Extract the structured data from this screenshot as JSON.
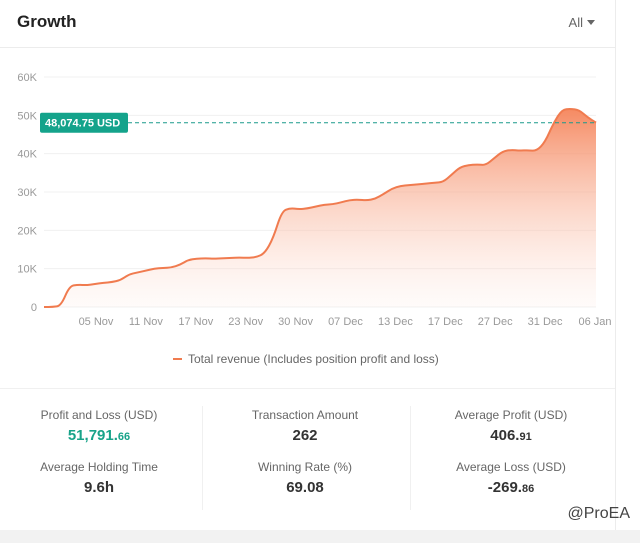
{
  "header": {
    "title": "Growth",
    "filter_label": "All"
  },
  "chart_data": {
    "type": "area",
    "title": "",
    "y_ticks": [
      "0",
      "10K",
      "20K",
      "30K",
      "40K",
      "50K",
      "60K"
    ],
    "x_ticks": [
      "05 Nov",
      "11 Nov",
      "17 Nov",
      "23 Nov",
      "30 Nov",
      "07 Dec",
      "13 Dec",
      "17 Dec",
      "27 Dec",
      "31 Dec",
      "06 Jan"
    ],
    "ylim": [
      0,
      60000
    ],
    "reference_line": {
      "value": 48074.75,
      "label": "48,074.75 USD"
    },
    "series": [
      {
        "name": "Total revenue (Includes position profit and loss)",
        "color": "#f07b4f",
        "values": [
          0,
          0,
          300,
          5500,
          5800,
          5700,
          6000,
          6300,
          6500,
          7000,
          8500,
          9000,
          9500,
          10000,
          10200,
          10300,
          11000,
          12300,
          12600,
          12700,
          12600,
          12700,
          12800,
          12900,
          12800,
          13000,
          14000,
          18000,
          25000,
          25800,
          25500,
          25700,
          26200,
          26700,
          26800,
          27300,
          27900,
          28000,
          27800,
          28200,
          29500,
          30900,
          31600,
          31800,
          32000,
          32200,
          32400,
          32600,
          34500,
          36500,
          37000,
          37200,
          37000,
          38800,
          40600,
          41000,
          40800,
          40900,
          40700,
          43000,
          48000,
          51500,
          51700,
          51400,
          49500,
          48100
        ]
      }
    ],
    "legend_position": "bottom-center",
    "grid": true
  },
  "legend": {
    "label": "Total revenue (Includes position profit and loss)"
  },
  "stats": [
    {
      "label": "Profit and Loss (USD)",
      "int": "51,791.",
      "dec": "66"
    },
    {
      "label": "Transaction Amount",
      "int": "262",
      "dec": ""
    },
    {
      "label": "Average Profit (USD)",
      "int": "406.",
      "dec": "91"
    },
    {
      "label": "Average Holding Time",
      "int": "9.6h",
      "dec": ""
    },
    {
      "label": "Winning Rate (%)",
      "int": "69.08",
      "dec": ""
    },
    {
      "label": "Average Loss (USD)",
      "int": "-269.",
      "dec": "86"
    }
  ],
  "watermark": "@ProEA"
}
